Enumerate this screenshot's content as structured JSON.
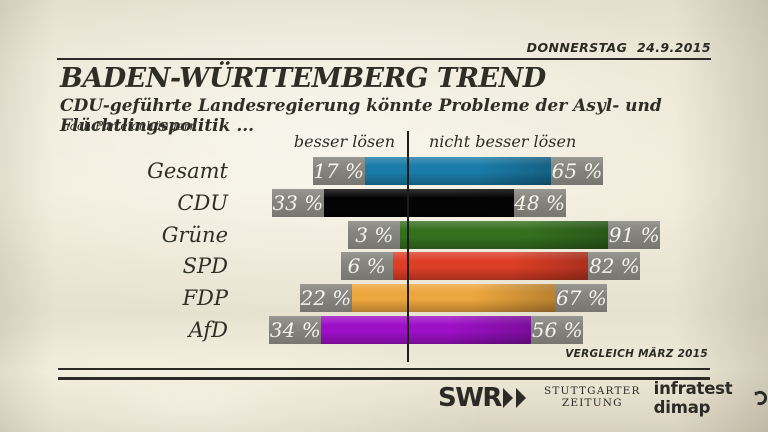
{
  "meta": {
    "date_label": "DONNERSTAG 24.9.2015",
    "comparison_label": "VERGLEICH MÄRZ 2015"
  },
  "header": {
    "title": "BADEN-WÜRTTEMBERG TREND",
    "subtitle": "CDU-geführte Landesregierung könnte Probleme der Asyl- und Flüchtlingspolitik ...",
    "note": "nach Parteianhängern"
  },
  "chart_data": {
    "type": "bar",
    "variant": "horizontal-diverging",
    "left_column_label": "besser lösen",
    "right_column_label": "nicht besser lösen",
    "categories": [
      "Gesamt",
      "CDU",
      "Grüne",
      "SPD",
      "FDP",
      "AfD"
    ],
    "series": [
      {
        "name": "besser lösen",
        "values": [
          17,
          33,
          3,
          6,
          22,
          34
        ]
      },
      {
        "name": "nicht besser lösen",
        "values": [
          65,
          48,
          91,
          82,
          67,
          56
        ]
      }
    ],
    "value_suffix": " %",
    "bar_colors": [
      "#1a7ca8",
      "#040404",
      "#35701f",
      "#dd3e26",
      "#eda63d",
      "#9e10c8"
    ],
    "value_box_color": "#87867f",
    "axis_line_color": "#1e1d18",
    "legend_position": "top"
  },
  "footer": {
    "logos": {
      "swr": "SWR",
      "sz_line1": "STUTTGARTER",
      "sz_line2": "ZEITUNG",
      "infratest": "infratest dimap"
    },
    "icons": [
      "swr-chevrons-icon",
      "infratest-dimap-mark-icon"
    ]
  }
}
